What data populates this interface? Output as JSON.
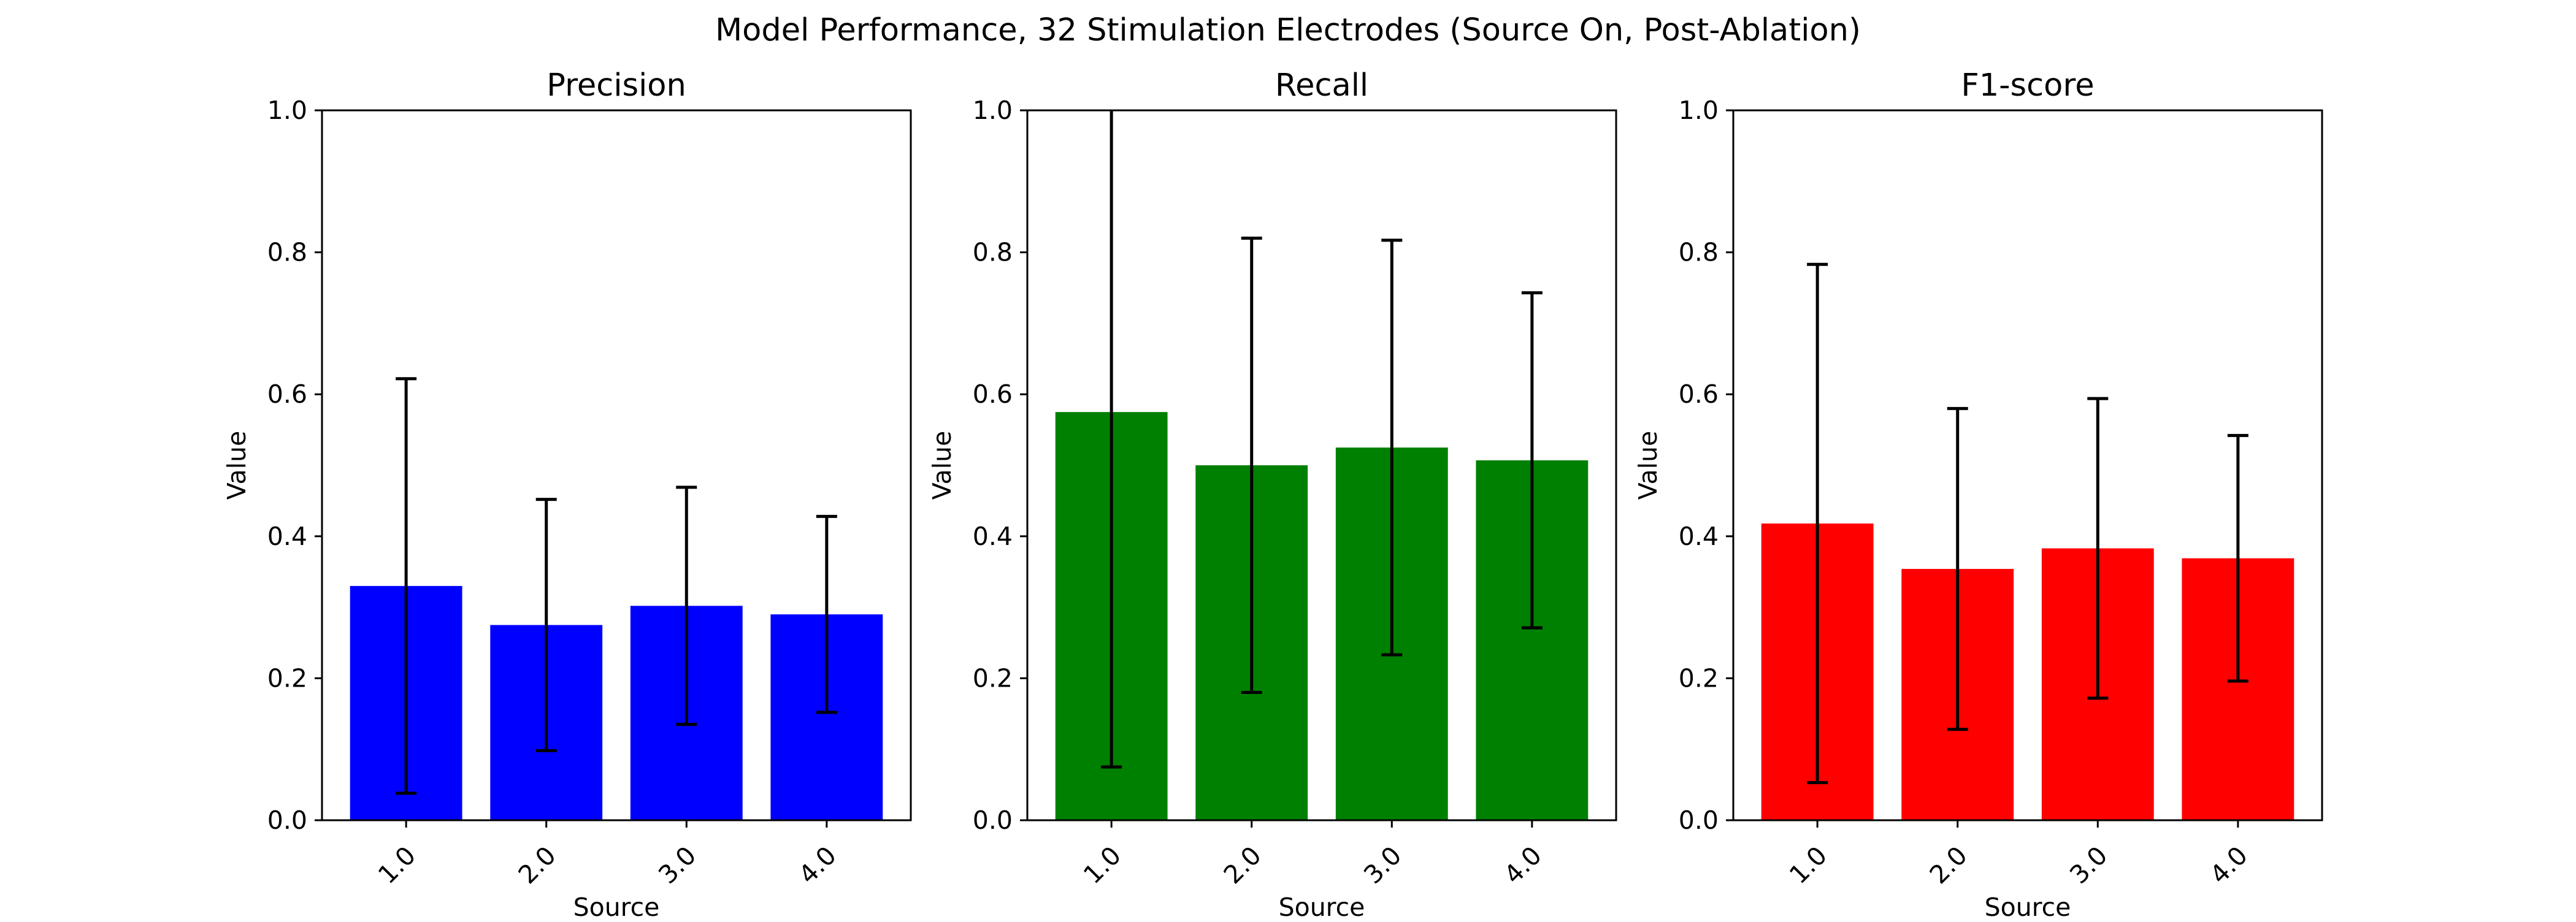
{
  "figure": {
    "title": "Model Performance, 32 Stimulation Electrodes (Source On, Post-Ablation)"
  },
  "chart_data": [
    {
      "type": "bar",
      "title": "Precision",
      "xlabel": "Source",
      "ylabel": "Value",
      "categories": [
        "1.0",
        "2.0",
        "3.0",
        "4.0"
      ],
      "values": [
        0.33,
        0.275,
        0.302,
        0.29
      ],
      "error": [
        0.292,
        0.177,
        0.167,
        0.138
      ],
      "color": "#0000ff",
      "ylim": [
        0,
        1.0
      ],
      "yticks": [
        "0.0",
        "0.2",
        "0.4",
        "0.6",
        "0.8",
        "1.0"
      ],
      "grid": false
    },
    {
      "type": "bar",
      "title": "Recall",
      "xlabel": "Source",
      "ylabel": "Value",
      "categories": [
        "1.0",
        "2.0",
        "3.0",
        "4.0"
      ],
      "values": [
        0.575,
        0.5,
        0.525,
        0.507
      ],
      "error": [
        0.5,
        0.32,
        0.292,
        0.236
      ],
      "color": "#008000",
      "ylim": [
        0,
        1.0
      ],
      "yticks": [
        "0.0",
        "0.2",
        "0.4",
        "0.6",
        "0.8",
        "1.0"
      ],
      "grid": false
    },
    {
      "type": "bar",
      "title": "F1-score",
      "xlabel": "Source",
      "ylabel": "Value",
      "categories": [
        "1.0",
        "2.0",
        "3.0",
        "4.0"
      ],
      "values": [
        0.418,
        0.354,
        0.383,
        0.369
      ],
      "error": [
        0.365,
        0.226,
        0.211,
        0.173
      ],
      "color": "#ff0000",
      "ylim": [
        0,
        1.0
      ],
      "yticks": [
        "0.0",
        "0.2",
        "0.4",
        "0.6",
        "0.8",
        "1.0"
      ],
      "grid": false
    }
  ]
}
